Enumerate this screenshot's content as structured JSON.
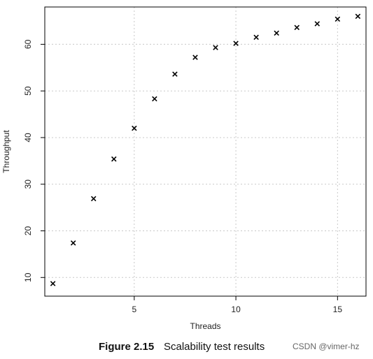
{
  "chart_data": {
    "type": "scatter",
    "xlabel": "Threads",
    "ylabel": "Throughput",
    "xlim": [
      0.6,
      16.4
    ],
    "ylim": [
      6.0,
      68.0
    ],
    "xticks": [
      5,
      10,
      15
    ],
    "yticks": [
      10,
      20,
      30,
      40,
      50,
      60
    ],
    "grid": true,
    "marker": "x",
    "x": [
      1,
      2,
      3,
      4,
      5,
      6,
      7,
      8,
      9,
      10,
      11,
      12,
      13,
      14,
      15,
      16
    ],
    "y": [
      8.7,
      17.4,
      26.9,
      35.4,
      42.0,
      48.3,
      53.6,
      57.2,
      59.3,
      60.2,
      61.5,
      62.4,
      63.6,
      64.4,
      65.4,
      66.0
    ]
  },
  "caption": {
    "figure_number": "Figure 2.15",
    "text": "Scalability test results"
  },
  "watermark": "CSDN @vimer-hz"
}
